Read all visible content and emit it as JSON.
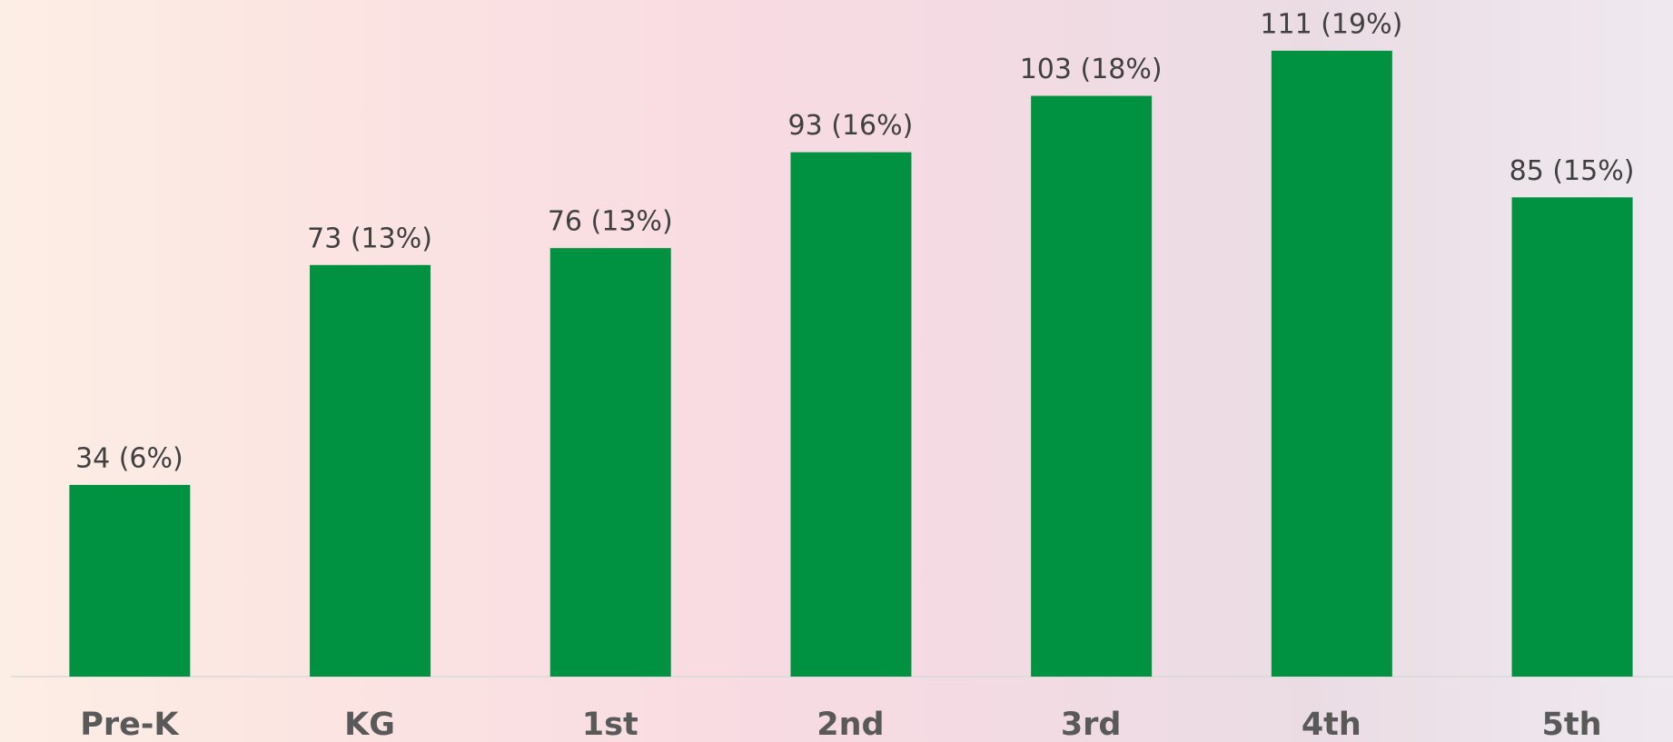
{
  "chart_data": {
    "type": "bar",
    "categories": [
      "Pre-K",
      "KG",
      "1st",
      "2nd",
      "3rd",
      "4th",
      "5th"
    ],
    "values": [
      34,
      73,
      76,
      93,
      103,
      111,
      85
    ],
    "value_labels": [
      "34 (6%)",
      "73 (13%)",
      "76 (13%)",
      "93 (16%)",
      "103 (18%)",
      "111 (19%)",
      "85 (15%)"
    ],
    "color": "#009241",
    "ylim": [
      0,
      120
    ]
  }
}
